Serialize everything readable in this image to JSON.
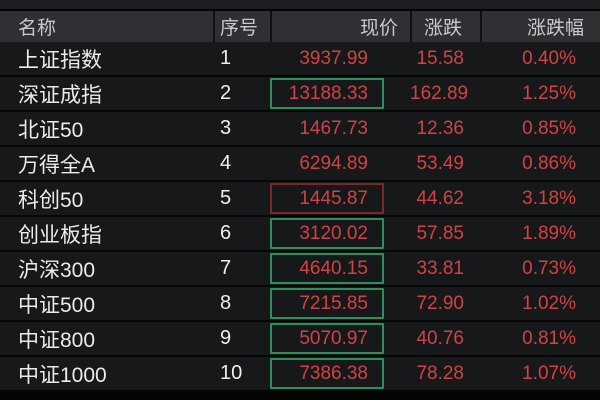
{
  "colors": {
    "text_red": "#cf4343",
    "box_green": "#2f8f5a",
    "box_red": "#7c2828",
    "header_bg": "#2e3034",
    "row_bg": "#17181a"
  },
  "table": {
    "columns": [
      {
        "key": "name",
        "label": "名称"
      },
      {
        "key": "seq",
        "label": "序号"
      },
      {
        "key": "price",
        "label": "现价"
      },
      {
        "key": "change",
        "label": "涨跌"
      },
      {
        "key": "pct",
        "label": "涨跌幅"
      }
    ],
    "rows": [
      {
        "name": "上证指数",
        "seq": "1",
        "price": "3937.99",
        "change": "15.58",
        "pct": "0.40%",
        "box": "none"
      },
      {
        "name": "深证成指",
        "seq": "2",
        "price": "13188.33",
        "change": "162.89",
        "pct": "1.25%",
        "box": "green"
      },
      {
        "name": "北证50",
        "seq": "3",
        "price": "1467.73",
        "change": "12.36",
        "pct": "0.85%",
        "box": "none"
      },
      {
        "name": "万得全A",
        "seq": "4",
        "price": "6294.89",
        "change": "53.49",
        "pct": "0.86%",
        "box": "none"
      },
      {
        "name": "科创50",
        "seq": "5",
        "price": "1445.87",
        "change": "44.62",
        "pct": "3.18%",
        "box": "red"
      },
      {
        "name": "创业板指",
        "seq": "6",
        "price": "3120.02",
        "change": "57.85",
        "pct": "1.89%",
        "box": "green"
      },
      {
        "name": "沪深300",
        "seq": "7",
        "price": "4640.15",
        "change": "33.81",
        "pct": "0.73%",
        "box": "green"
      },
      {
        "name": "中证500",
        "seq": "8",
        "price": "7215.85",
        "change": "72.90",
        "pct": "1.02%",
        "box": "green"
      },
      {
        "name": "中证800",
        "seq": "9",
        "price": "5070.97",
        "change": "40.76",
        "pct": "0.81%",
        "box": "green"
      },
      {
        "name": "中证1000",
        "seq": "10",
        "price": "7386.38",
        "change": "78.28",
        "pct": "1.07%",
        "box": "green"
      }
    ]
  }
}
